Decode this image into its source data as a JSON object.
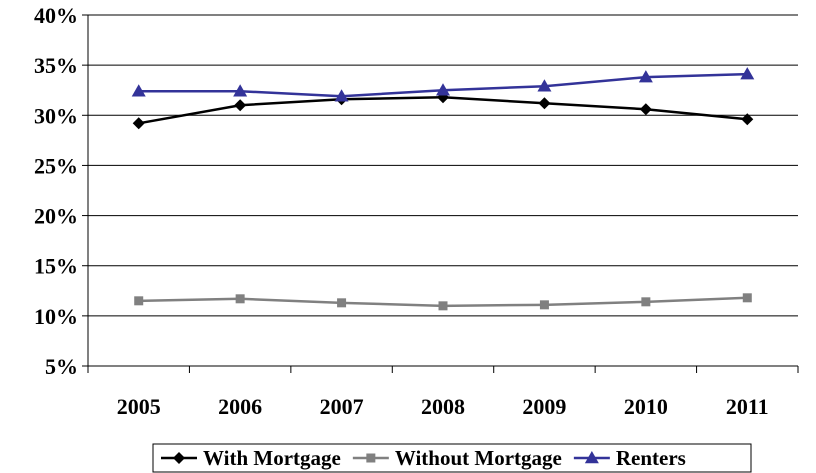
{
  "chart_data": {
    "type": "line",
    "title": "",
    "xlabel": "",
    "ylabel": "",
    "categories": [
      "2005",
      "2006",
      "2007",
      "2008",
      "2009",
      "2010",
      "2011"
    ],
    "ylim": [
      5,
      40
    ],
    "yticks": [
      5,
      10,
      15,
      20,
      25,
      30,
      35,
      40
    ],
    "ytick_labels": [
      "5%",
      "10%",
      "15%",
      "20%",
      "25%",
      "30%",
      "35%",
      "40%"
    ],
    "grid": true,
    "legend_position": "bottom",
    "series": [
      {
        "name": "With Mortgage",
        "values": [
          29.2,
          31.0,
          31.6,
          31.8,
          31.2,
          30.6,
          29.6
        ],
        "color": "#000000",
        "marker": "diamond"
      },
      {
        "name": "Without Mortgage",
        "values": [
          11.5,
          11.7,
          11.3,
          11.0,
          11.1,
          11.4,
          11.8
        ],
        "color": "#808080",
        "marker": "square"
      },
      {
        "name": "Renters",
        "values": [
          32.4,
          32.4,
          31.9,
          32.5,
          32.9,
          33.8,
          34.1
        ],
        "color": "#333399",
        "marker": "triangle"
      }
    ]
  }
}
